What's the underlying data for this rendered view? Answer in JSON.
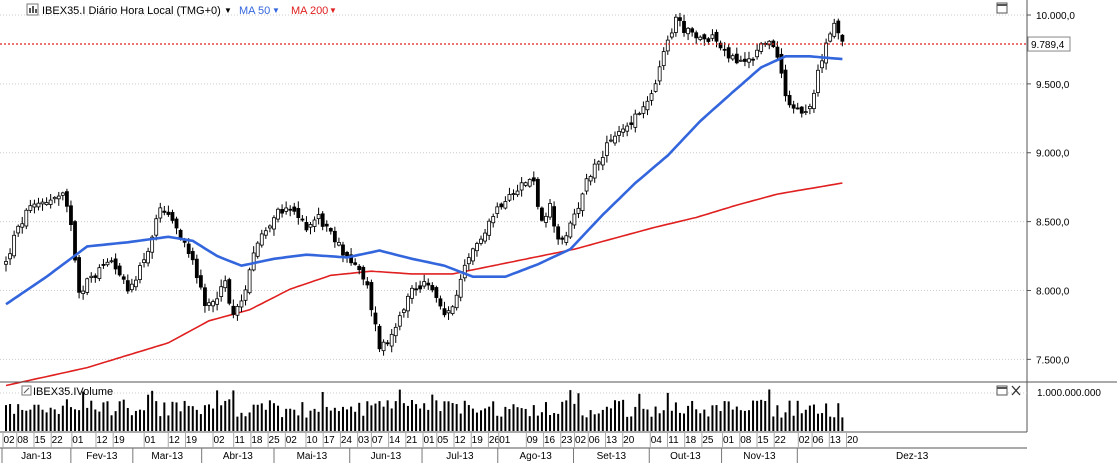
{
  "chart_data": [
    {
      "type": "candlestick",
      "title": "IBEX35.I Diário Hora Local (TMG+0)",
      "symbol": "IBEX35.I",
      "period": "Diário",
      "timezone": "Hora Local (TMG+0)",
      "indicators": [
        {
          "name": "MA 50",
          "color": "#3366dd"
        },
        {
          "name": "MA 200",
          "color": "#e02020"
        }
      ],
      "last_price_label": "9.789,4",
      "last_price": 9789.4,
      "y_ticks": [
        "10.000,0",
        "9.500,0",
        "9.000,0",
        "8.500,0",
        "8.000,0",
        "7.500,0"
      ],
      "y_tick_values": [
        10000,
        9500,
        9000,
        8500,
        8000,
        7500
      ],
      "ylim": [
        7350,
        10080
      ],
      "ohlc_note": "approximate daily close path estimated from the axes",
      "close_anchors": [
        {
          "day": 0,
          "close": 8200
        },
        {
          "day": 2,
          "close": 8380
        },
        {
          "day": 5,
          "close": 8560
        },
        {
          "day": 9,
          "close": 8650
        },
        {
          "day": 14,
          "close": 8680
        },
        {
          "day": 16,
          "close": 8500
        },
        {
          "day": 18,
          "close": 8000
        },
        {
          "day": 22,
          "close": 8120
        },
        {
          "day": 26,
          "close": 8250
        },
        {
          "day": 30,
          "close": 7980
        },
        {
          "day": 35,
          "close": 8300
        },
        {
          "day": 38,
          "close": 8580
        },
        {
          "day": 40,
          "close": 8520
        },
        {
          "day": 43,
          "close": 8400
        },
        {
          "day": 46,
          "close": 8250
        },
        {
          "day": 49,
          "close": 7860
        },
        {
          "day": 54,
          "close": 8050
        },
        {
          "day": 56,
          "close": 7830
        },
        {
          "day": 58,
          "close": 7900
        },
        {
          "day": 61,
          "close": 8300
        },
        {
          "day": 66,
          "close": 8550
        },
        {
          "day": 70,
          "close": 8580
        },
        {
          "day": 74,
          "close": 8470
        },
        {
          "day": 77,
          "close": 8540
        },
        {
          "day": 80,
          "close": 8400
        },
        {
          "day": 84,
          "close": 8250
        },
        {
          "day": 86,
          "close": 8180
        },
        {
          "day": 89,
          "close": 8020
        },
        {
          "day": 92,
          "close": 7600
        },
        {
          "day": 94,
          "close": 7620
        },
        {
          "day": 97,
          "close": 7840
        },
        {
          "day": 100,
          "close": 8000
        },
        {
          "day": 104,
          "close": 8070
        },
        {
          "day": 108,
          "close": 7800
        },
        {
          "day": 111,
          "close": 7950
        },
        {
          "day": 113,
          "close": 8150
        },
        {
          "day": 117,
          "close": 8400
        },
        {
          "day": 121,
          "close": 8600
        },
        {
          "day": 124,
          "close": 8720
        },
        {
          "day": 127,
          "close": 8770
        },
        {
          "day": 130,
          "close": 8800
        },
        {
          "day": 132,
          "close": 8480
        },
        {
          "day": 134,
          "close": 8600
        },
        {
          "day": 136,
          "close": 8340
        },
        {
          "day": 139,
          "close": 8460
        },
        {
          "day": 143,
          "close": 8800
        },
        {
          "day": 147,
          "close": 9000
        },
        {
          "day": 151,
          "close": 9150
        },
        {
          "day": 155,
          "close": 9250
        },
        {
          "day": 159,
          "close": 9400
        },
        {
          "day": 161,
          "close": 9620
        },
        {
          "day": 163,
          "close": 9800
        },
        {
          "day": 165,
          "close": 9980
        },
        {
          "day": 167,
          "close": 9900
        },
        {
          "day": 170,
          "close": 9820
        },
        {
          "day": 174,
          "close": 9850
        },
        {
          "day": 177,
          "close": 9720
        },
        {
          "day": 181,
          "close": 9650
        },
        {
          "day": 184,
          "close": 9700
        },
        {
          "day": 187,
          "close": 9820
        },
        {
          "day": 190,
          "close": 9720
        },
        {
          "day": 192,
          "close": 9420
        },
        {
          "day": 194,
          "close": 9340
        },
        {
          "day": 196,
          "close": 9300
        },
        {
          "day": 199,
          "close": 9400
        },
        {
          "day": 200,
          "close": 9580
        },
        {
          "day": 202,
          "close": 9820
        },
        {
          "day": 204,
          "close": 9920
        },
        {
          "day": 206,
          "close": 9789.4
        }
      ],
      "ma50_note": "approximate series path",
      "ma50_anchors": [
        {
          "day": 0,
          "v": 7900
        },
        {
          "day": 10,
          "v": 8100
        },
        {
          "day": 20,
          "v": 8320
        },
        {
          "day": 30,
          "v": 8350
        },
        {
          "day": 40,
          "v": 8390
        },
        {
          "day": 46,
          "v": 8360
        },
        {
          "day": 52,
          "v": 8250
        },
        {
          "day": 58,
          "v": 8180
        },
        {
          "day": 66,
          "v": 8230
        },
        {
          "day": 74,
          "v": 8260
        },
        {
          "day": 84,
          "v": 8240
        },
        {
          "day": 92,
          "v": 8290
        },
        {
          "day": 100,
          "v": 8230
        },
        {
          "day": 108,
          "v": 8180
        },
        {
          "day": 115,
          "v": 8100
        },
        {
          "day": 123,
          "v": 8100
        },
        {
          "day": 131,
          "v": 8190
        },
        {
          "day": 139,
          "v": 8300
        },
        {
          "day": 147,
          "v": 8550
        },
        {
          "day": 155,
          "v": 8780
        },
        {
          "day": 163,
          "v": 8980
        },
        {
          "day": 171,
          "v": 9230
        },
        {
          "day": 179,
          "v": 9440
        },
        {
          "day": 186,
          "v": 9620
        },
        {
          "day": 192,
          "v": 9700
        },
        {
          "day": 198,
          "v": 9700
        },
        {
          "day": 206,
          "v": 9680
        }
      ],
      "ma200_note": "approximate series path",
      "ma200_anchors": [
        {
          "day": 0,
          "v": 7310
        },
        {
          "day": 20,
          "v": 7440
        },
        {
          "day": 40,
          "v": 7620
        },
        {
          "day": 50,
          "v": 7780
        },
        {
          "day": 60,
          "v": 7860
        },
        {
          "day": 70,
          "v": 8010
        },
        {
          "day": 80,
          "v": 8110
        },
        {
          "day": 90,
          "v": 8140
        },
        {
          "day": 100,
          "v": 8120
        },
        {
          "day": 110,
          "v": 8120
        },
        {
          "day": 120,
          "v": 8180
        },
        {
          "day": 130,
          "v": 8240
        },
        {
          "day": 140,
          "v": 8300
        },
        {
          "day": 150,
          "v": 8380
        },
        {
          "day": 160,
          "v": 8460
        },
        {
          "day": 170,
          "v": 8530
        },
        {
          "day": 180,
          "v": 8620
        },
        {
          "day": 190,
          "v": 8700
        },
        {
          "day": 206,
          "v": 8780
        }
      ]
    },
    {
      "type": "bar",
      "title": "IBEX35.IVolume",
      "y_ticks": [
        "1.000.000.000"
      ],
      "y_tick_values": [
        1000000000
      ],
      "values_note": "daily volume bars; approximate heights",
      "typical_range": [
        350000000,
        1000000000
      ]
    }
  ],
  "x_axis": {
    "day_labels": [
      "02",
      "08",
      "15",
      "22",
      "01",
      "12",
      "19",
      "01",
      "12",
      "19",
      "02",
      "11",
      "18",
      "25",
      "02",
      "10",
      "17",
      "24",
      "03",
      "07",
      "14",
      "21",
      "01",
      "05",
      "12",
      "19",
      "26",
      "01",
      "09",
      "16",
      "23",
      "02",
      "06",
      "13",
      "20",
      "04",
      "11",
      "18",
      "25",
      "01",
      "08",
      "15",
      "22",
      "02",
      "06",
      "13",
      "20"
    ],
    "day_label_positions": [
      0,
      4,
      9,
      14,
      20,
      27,
      32,
      41,
      48,
      53,
      61,
      67,
      72,
      77,
      82,
      88,
      93,
      98,
      103,
      107,
      112,
      117,
      122,
      126,
      131,
      136,
      141,
      144,
      152,
      157,
      162,
      166,
      170,
      175,
      180,
      188,
      193,
      198,
      203,
      209,
      214,
      219,
      224,
      231,
      235,
      240,
      245
    ],
    "months": [
      "Jan-13",
      "Fev-13",
      "Mar-13",
      "Abr-13",
      "Mai-13",
      "Jun-13",
      "Jul-13",
      "Ago-13",
      "Set-13",
      "Out-13",
      "Nov-13",
      "Dez-13"
    ],
    "month_day_index": [
      0,
      20,
      38,
      58,
      79,
      101,
      122,
      144,
      166,
      188,
      209,
      231
    ]
  },
  "colors": {
    "candle": "#000000",
    "ma50": "#3366dd",
    "ma200": "#e02020",
    "last_line": "#e02020",
    "grid": "#cccccc"
  }
}
